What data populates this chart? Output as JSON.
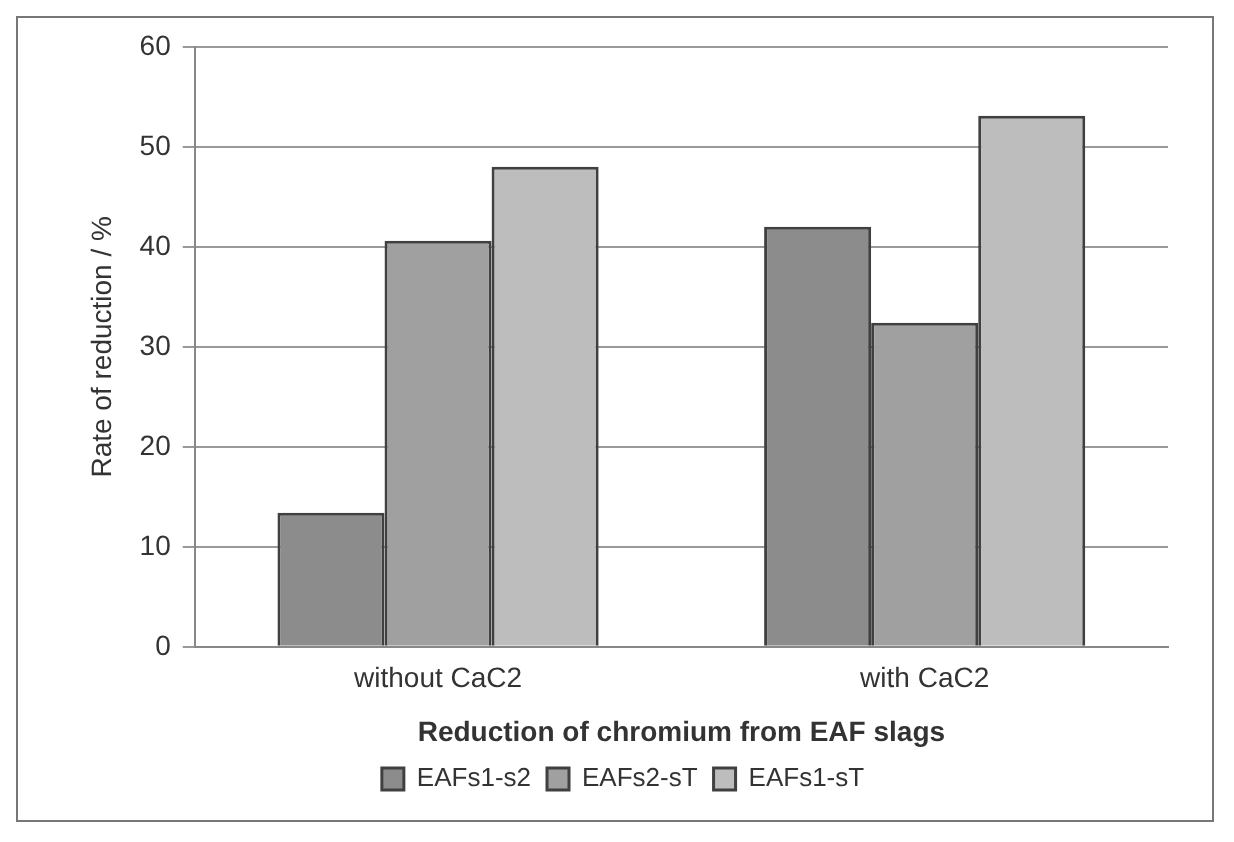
{
  "chart_data": {
    "type": "bar",
    "xlabel": "Reduction of chromium from EAF slags",
    "ylabel": "Rate of reduction / %",
    "categories": [
      "without CaC2",
      "with CaC2"
    ],
    "series": [
      {
        "name": "EAFs1-s2",
        "color": "#8c8c8c",
        "values": [
          13.4,
          42.0
        ]
      },
      {
        "name": "EAFs2-sT",
        "color": "#a0a0a0",
        "values": [
          40.6,
          32.4
        ]
      },
      {
        "name": "EAFs1-sT",
        "color": "#bdbdbd",
        "values": [
          48.0,
          53.1
        ]
      }
    ],
    "ylim": [
      0,
      60
    ],
    "yticks": [
      0,
      10,
      20,
      30,
      40,
      50,
      60
    ],
    "grid": "y",
    "legend": "bottom"
  }
}
